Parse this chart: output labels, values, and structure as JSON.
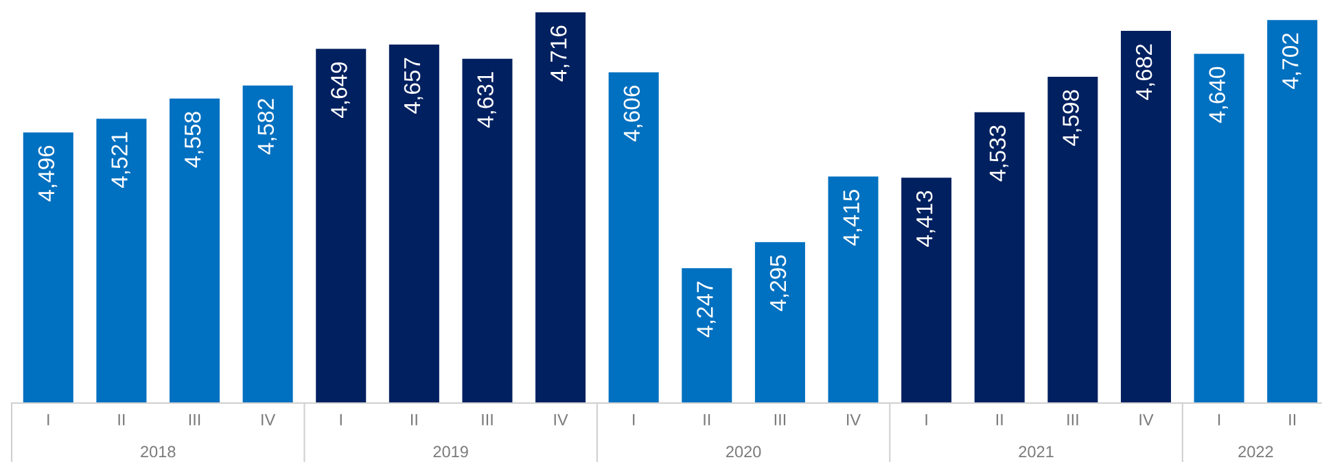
{
  "chart_data": {
    "type": "bar",
    "categories": [
      "I",
      "II",
      "III",
      "IV",
      "I",
      "II",
      "III",
      "IV",
      "I",
      "II",
      "III",
      "IV",
      "I",
      "II",
      "III",
      "IV",
      "I",
      "II"
    ],
    "values": [
      4496,
      4521,
      4558,
      4582,
      4649,
      4657,
      4631,
      4716,
      4606,
      4247,
      4295,
      4415,
      4413,
      4533,
      4598,
      4682,
      4640,
      4702
    ],
    "value_labels": [
      "4,496",
      "4,521",
      "4,558",
      "4,582",
      "4,649",
      "4,657",
      "4,631",
      "4,716",
      "4,606",
      "4,247",
      "4,295",
      "4,415",
      "4,413",
      "4,533",
      "4,598",
      "4,682",
      "4,640",
      "4,702"
    ],
    "colors": [
      "#0070c0",
      "#0070c0",
      "#0070c0",
      "#0070c0",
      "#002060",
      "#002060",
      "#002060",
      "#002060",
      "#0070c0",
      "#0070c0",
      "#0070c0",
      "#0070c0",
      "#002060",
      "#002060",
      "#002060",
      "#002060",
      "#0070c0",
      "#0070c0"
    ],
    "ylim": [
      4000,
      4716
    ],
    "tick_labels": "x",
    "annotations": [
      "2018",
      "2019",
      "2020",
      "2021",
      "2022"
    ]
  }
}
